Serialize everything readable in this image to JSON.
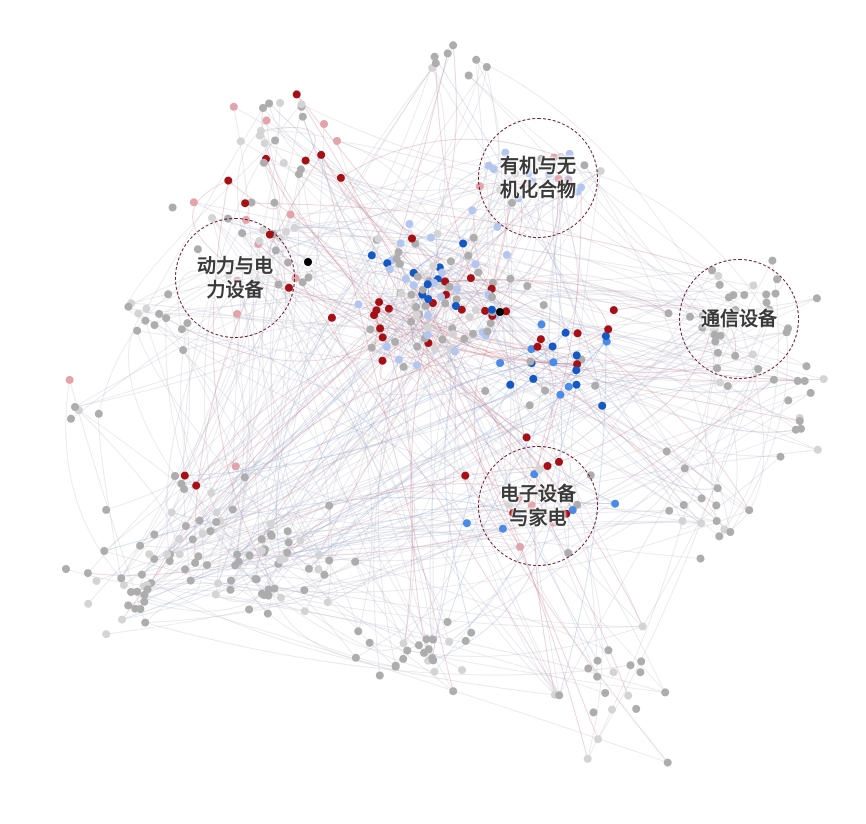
{
  "clusters": [
    {
      "label": "有机与无机化合物"
    },
    {
      "label": "动力与电力设备"
    },
    {
      "label": "通信设备"
    },
    {
      "label": "电子设备与家电"
    }
  ],
  "colors": {
    "node_default": "#adadad",
    "node_light": "#d4d4d4",
    "node_red": "#a50f15",
    "node_pink": "#e3a3ab",
    "node_blue": "#1358c4",
    "node_mid_blue": "#4a8ae8",
    "node_light_blue": "#b3c6f0",
    "node_black": "#000000",
    "edge_red": "#c9707c",
    "edge_blue": "#7c9fd8",
    "edge_gray": "#b8b8c8",
    "cluster_border": "#6b1020"
  }
}
